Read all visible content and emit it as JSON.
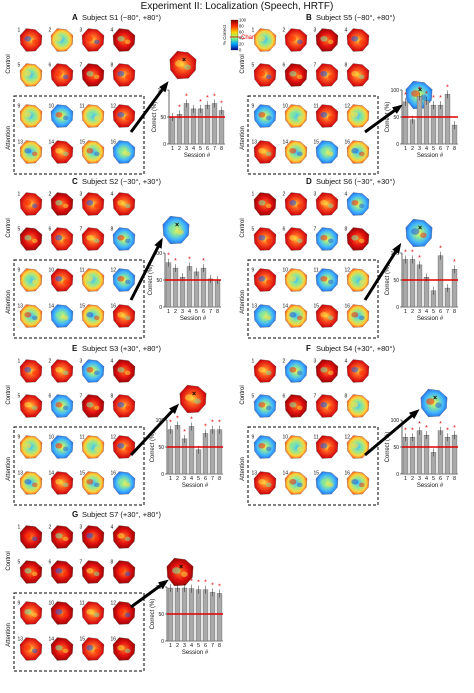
{
  "figure_title": "Experiment II: Localization (Speech, HRTF)",
  "colorbar": {
    "label": "% Correct",
    "ticks": [
      "100",
      "80",
      "60",
      "40",
      "20",
      "0"
    ],
    "chance_label": "Chance"
  },
  "row_labels": {
    "control": "Control",
    "attention": "Attention"
  },
  "axis": {
    "ylabel": "Correct (%)",
    "xlabel": "Session #"
  },
  "panels": [
    {
      "letter": "A",
      "title": "Subject S1 (−80°, +80°)"
    },
    {
      "letter": "B",
      "title": "Subject S5 (−80°, +80°)"
    },
    {
      "letter": "C",
      "title": "Subject S2 (−30°, +30°)"
    },
    {
      "letter": "D",
      "title": "Subject S6 (−30°, +30°)"
    },
    {
      "letter": "E",
      "title": "Subject S3 (+30°, +80°)"
    },
    {
      "letter": "F",
      "title": "Subject S4 (+30°, +80°)"
    },
    {
      "letter": "G",
      "title": "Subject S7 (+30°, +80°)"
    }
  ],
  "colors": {
    "bar": "#a9a9a9",
    "chance_line": "#e00000",
    "asterisk": "#e00000"
  },
  "chart_data": [
    {
      "type": "bar",
      "panel": "A",
      "categories": [
        "1",
        "2",
        "3",
        "4",
        "5",
        "6",
        "7",
        "8"
      ],
      "values": [
        50,
        55,
        75,
        65,
        65,
        72,
        75,
        62
      ],
      "chance": 50,
      "ylim": [
        0,
        100
      ],
      "yticks": [
        0,
        50,
        100
      ],
      "significant": [
        false,
        true,
        true,
        false,
        true,
        true,
        true,
        true
      ]
    },
    {
      "type": "bar",
      "panel": "B",
      "categories": [
        "1",
        "2",
        "3",
        "4",
        "5",
        "6",
        "7",
        "8"
      ],
      "values": [
        78,
        45,
        88,
        80,
        72,
        72,
        92,
        35
      ],
      "chance": 50,
      "ylim": [
        0,
        100
      ],
      "yticks": [
        0,
        50,
        100
      ],
      "significant": [
        true,
        false,
        true,
        true,
        true,
        true,
        true,
        false
      ]
    },
    {
      "type": "bar",
      "panel": "C",
      "categories": [
        "1",
        "2",
        "3",
        "4",
        "5",
        "6",
        "7",
        "8"
      ],
      "values": [
        82,
        72,
        55,
        75,
        65,
        72,
        52,
        50
      ],
      "chance": 50,
      "ylim": [
        0,
        100
      ],
      "yticks": [
        0,
        50,
        100
      ],
      "significant": [
        true,
        true,
        false,
        true,
        false,
        true,
        false,
        false
      ]
    },
    {
      "type": "bar",
      "panel": "D",
      "categories": [
        "1",
        "2",
        "3",
        "4",
        "5",
        "6",
        "7",
        "8"
      ],
      "values": [
        88,
        88,
        78,
        55,
        30,
        95,
        35,
        70
      ],
      "chance": 50,
      "ylim": [
        0,
        100
      ],
      "yticks": [
        0,
        50,
        100
      ],
      "significant": [
        true,
        true,
        true,
        false,
        false,
        true,
        false,
        true
      ]
    },
    {
      "type": "bar",
      "panel": "E",
      "categories": [
        "1",
        "2",
        "3",
        "4",
        "5",
        "6",
        "7",
        "8"
      ],
      "values": [
        82,
        90,
        65,
        88,
        45,
        75,
        82,
        82
      ],
      "chance": 50,
      "ylim": [
        0,
        100
      ],
      "yticks": [
        0,
        50,
        100
      ],
      "significant": [
        true,
        true,
        true,
        true,
        false,
        true,
        true,
        true
      ]
    },
    {
      "type": "bar",
      "panel": "F",
      "categories": [
        "1",
        "2",
        "3",
        "4",
        "5",
        "6",
        "7",
        "8"
      ],
      "values": [
        68,
        68,
        80,
        72,
        40,
        80,
        68,
        72
      ],
      "chance": 50,
      "ylim": [
        0,
        100
      ],
      "yticks": [
        0,
        50,
        100
      ],
      "significant": [
        true,
        true,
        true,
        true,
        false,
        true,
        true,
        true
      ]
    },
    {
      "type": "bar",
      "panel": "G",
      "categories": [
        "1",
        "2",
        "3",
        "4",
        "5",
        "6",
        "7",
        "8"
      ],
      "values": [
        98,
        98,
        98,
        97,
        95,
        95,
        90,
        88
      ],
      "chance": 50,
      "ylim": [
        0,
        100
      ],
      "yticks": [
        0,
        50,
        100
      ],
      "significant": [
        true,
        true,
        true,
        true,
        true,
        true,
        true,
        true
      ]
    }
  ]
}
